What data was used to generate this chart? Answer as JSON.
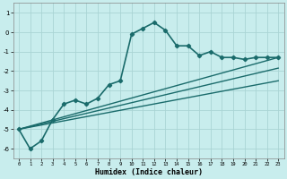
{
  "xlabel": "Humidex (Indice chaleur)",
  "ylabel": "",
  "background_color": "#c8eded",
  "grid_color": "#aad4d4",
  "line_color": "#1a6b6b",
  "xlim": [
    -0.5,
    23.5
  ],
  "ylim": [
    -6.5,
    1.5
  ],
  "xticks": [
    0,
    1,
    2,
    3,
    4,
    5,
    6,
    7,
    8,
    9,
    10,
    11,
    12,
    13,
    14,
    15,
    16,
    17,
    18,
    19,
    20,
    21,
    22,
    23
  ],
  "yticks": [
    1,
    0,
    -1,
    -2,
    -3,
    -4,
    -5,
    -6
  ],
  "series": {
    "main": {
      "x": [
        0,
        1,
        2,
        3,
        4,
        5,
        6,
        7,
        8,
        9,
        10,
        11,
        12,
        13,
        14,
        15,
        16,
        17,
        18,
        19,
        20,
        21,
        22,
        23
      ],
      "y": [
        -5.0,
        -6.0,
        -5.6,
        -4.5,
        -3.7,
        -3.5,
        -3.7,
        -3.4,
        -2.7,
        -2.5,
        -0.1,
        0.2,
        0.5,
        0.1,
        -0.7,
        -0.7,
        -1.2,
        -1.0,
        -1.3,
        -1.3,
        -1.4,
        -1.3,
        -1.3,
        -1.3
      ],
      "marker": "D",
      "markersize": 2.2,
      "linewidth": 1.2
    },
    "line1": {
      "x": [
        0,
        23
      ],
      "y": [
        -5.0,
        -1.3
      ],
      "linewidth": 1.0
    },
    "line2": {
      "x": [
        0,
        23
      ],
      "y": [
        -5.0,
        -1.85
      ],
      "linewidth": 1.0
    },
    "line3": {
      "x": [
        0,
        23
      ],
      "y": [
        -5.0,
        -2.5
      ],
      "linewidth": 1.0
    }
  }
}
